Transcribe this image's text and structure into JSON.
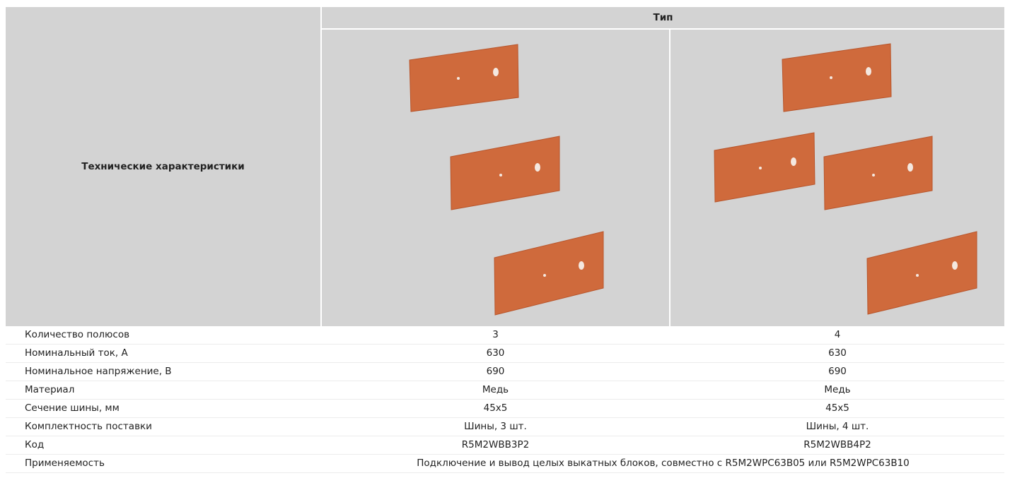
{
  "header": {
    "title": "Технические характеристики",
    "type": "Тип"
  },
  "table": {
    "rows": [
      [
        "Количество полюсов",
        "3",
        "4"
      ],
      [
        "Номинальный ток, А",
        "630",
        "630"
      ],
      [
        "Номинальное напряжение, В",
        "690",
        "690"
      ],
      [
        "Материал",
        "Медь",
        "Медь"
      ],
      [
        "Сечение шины, мм",
        "45x5",
        "45x5"
      ],
      [
        "Комплектность поставки",
        "Шины, 3 шт.",
        "Шины, 4 шт."
      ],
      [
        "Код",
        "R5M2WBB3P2",
        "R5M2WBB4P2"
      ],
      [
        "Применяемость",
        "Подключение и вывод целых выкатных блоков, совместно с R5M2WPC63B05 или R5M2WPC63B10"
      ]
    ]
  }
}
